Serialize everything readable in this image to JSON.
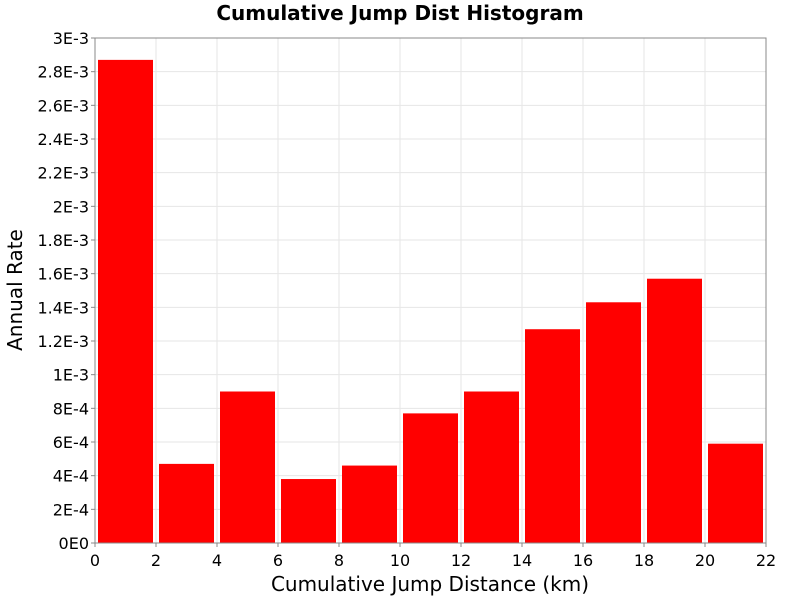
{
  "chart_data": {
    "type": "bar",
    "title": "Cumulative Jump Dist Histogram",
    "xlabel": "Cumulative Jump Distance (km)",
    "ylabel": "Annual Rate",
    "xlim": [
      0,
      22
    ],
    "ylim": [
      0,
      0.003
    ],
    "grid": true,
    "bar_color": "#ff0000",
    "bin_width": 2,
    "bins": [
      {
        "x_start": 0,
        "x_end": 2,
        "value": 0.00287
      },
      {
        "x_start": 2,
        "x_end": 4,
        "value": 0.00047
      },
      {
        "x_start": 4,
        "x_end": 6,
        "value": 0.0009
      },
      {
        "x_start": 6,
        "x_end": 8,
        "value": 0.00038
      },
      {
        "x_start": 8,
        "x_end": 10,
        "value": 0.00046
      },
      {
        "x_start": 10,
        "x_end": 12,
        "value": 0.00077
      },
      {
        "x_start": 12,
        "x_end": 14,
        "value": 0.0009
      },
      {
        "x_start": 14,
        "x_end": 16,
        "value": 0.00127
      },
      {
        "x_start": 16,
        "x_end": 18,
        "value": 0.00143
      },
      {
        "x_start": 18,
        "x_end": 20,
        "value": 0.00157
      },
      {
        "x_start": 20,
        "x_end": 22,
        "value": 0.00059
      }
    ],
    "x_ticks": [
      {
        "value": 0,
        "label": "0"
      },
      {
        "value": 2,
        "label": "2"
      },
      {
        "value": 4,
        "label": "4"
      },
      {
        "value": 6,
        "label": "6"
      },
      {
        "value": 8,
        "label": "8"
      },
      {
        "value": 10,
        "label": "10"
      },
      {
        "value": 12,
        "label": "12"
      },
      {
        "value": 14,
        "label": "14"
      },
      {
        "value": 16,
        "label": "16"
      },
      {
        "value": 18,
        "label": "18"
      },
      {
        "value": 20,
        "label": "20"
      },
      {
        "value": 22,
        "label": "22"
      }
    ],
    "y_ticks": [
      {
        "value": 0,
        "label": "0E0"
      },
      {
        "value": 0.0002,
        "label": "2E-4"
      },
      {
        "value": 0.0004,
        "label": "4E-4"
      },
      {
        "value": 0.0006,
        "label": "6E-4"
      },
      {
        "value": 0.0008,
        "label": "8E-4"
      },
      {
        "value": 0.001,
        "label": "1E-3"
      },
      {
        "value": 0.0012,
        "label": "1.2E-3"
      },
      {
        "value": 0.0014,
        "label": "1.4E-3"
      },
      {
        "value": 0.0016,
        "label": "1.6E-3"
      },
      {
        "value": 0.0018,
        "label": "1.8E-3"
      },
      {
        "value": 0.002,
        "label": "2E-3"
      },
      {
        "value": 0.0022,
        "label": "2.2E-3"
      },
      {
        "value": 0.0024,
        "label": "2.4E-3"
      },
      {
        "value": 0.0026,
        "label": "2.6E-3"
      },
      {
        "value": 0.0028,
        "label": "2.8E-3"
      },
      {
        "value": 0.003,
        "label": "3E-3"
      }
    ]
  }
}
